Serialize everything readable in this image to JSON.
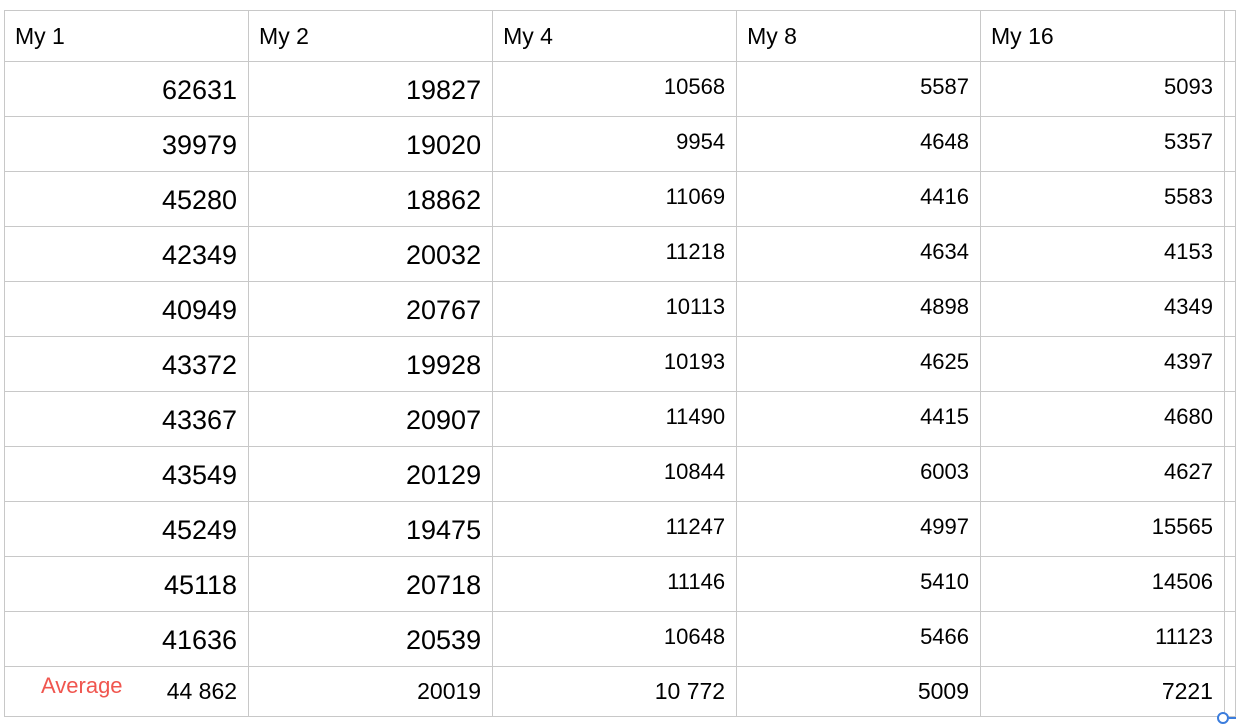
{
  "table": {
    "headers": [
      "My 1",
      "My 2",
      "My 4",
      "My 8",
      "My 16"
    ],
    "rows": [
      [
        "62631",
        "19827",
        "10568",
        "5587",
        "5093"
      ],
      [
        "39979",
        "19020",
        "9954",
        "4648",
        "5357"
      ],
      [
        "45280",
        "18862",
        "11069",
        "4416",
        "5583"
      ],
      [
        "42349",
        "20032",
        "11218",
        "4634",
        "4153"
      ],
      [
        "40949",
        "20767",
        "10113",
        "4898",
        "4349"
      ],
      [
        "43372",
        "19928",
        "10193",
        "4625",
        "4397"
      ],
      [
        "43367",
        "20907",
        "11490",
        "4415",
        "4680"
      ],
      [
        "43549",
        "20129",
        "10844",
        "6003",
        "4627"
      ],
      [
        "45249",
        "19475",
        "11247",
        "4997",
        "15565"
      ],
      [
        "45118",
        "20718",
        "11146",
        "5410",
        "14506"
      ],
      [
        "41636",
        "20539",
        "10648",
        "5466",
        "11123"
      ]
    ],
    "average": {
      "label": "Average",
      "values": [
        "44 862",
        "20019",
        "10 772",
        "5009",
        "7221"
      ]
    }
  },
  "colors": {
    "grid_line": "#c8c8c8",
    "average_label": "#f0564f",
    "selection_handle": "#3b7ddd"
  }
}
